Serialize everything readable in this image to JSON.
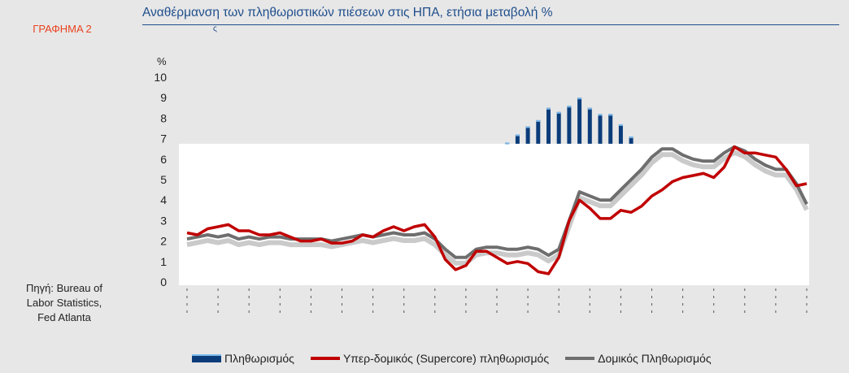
{
  "sidebar": {
    "graph_label": "ΓΡΑΦΗΜΑ 2",
    "source_lines": [
      "Πηγή: Bureau of",
      "Labor Statistics,",
      "Fed Atlanta"
    ]
  },
  "title": "Αναθέρμανση των πληθωριστικών πιέσεων στις ΗΠΑ, ετήσια μεταβολή %",
  "title_notch": "ς",
  "chart_data": {
    "type": "line",
    "title": "Αναθέρμανση των πληθωριστικών πιέσεων στις ΗΠΑ, ετήσια μεταβολή %",
    "ylabel": "%",
    "ylim": [
      0,
      10
    ],
    "y_ticks": [
      "0",
      "1",
      "2",
      "3",
      "4",
      "5",
      "6",
      "7",
      "8",
      "9",
      "10"
    ],
    "grid": false,
    "legend_position": "bottom",
    "n_points": 61,
    "series": [
      {
        "name": "Πληθωρισμός",
        "style": "bar",
        "color": "#0b3c7a",
        "x_start_index": 31,
        "values": [
          6.8,
          7.2,
          7.6,
          7.9,
          8.5,
          8.3,
          8.6,
          9.0,
          8.5,
          8.2,
          8.2,
          7.7,
          7.1
        ]
      },
      {
        "name": "Υπερ-δομικός (Supercore) πληθωρισμός",
        "style": "line",
        "color": "#c00000",
        "values": [
          2.4,
          2.3,
          2.6,
          2.7,
          2.8,
          2.5,
          2.5,
          2.3,
          2.3,
          2.4,
          2.2,
          2.0,
          2.0,
          2.1,
          1.9,
          1.9,
          2.0,
          2.3,
          2.2,
          2.5,
          2.7,
          2.5,
          2.7,
          2.8,
          2.2,
          1.1,
          0.6,
          0.8,
          1.5,
          1.5,
          1.2,
          0.9,
          1.0,
          0.9,
          0.5,
          0.4,
          1.2,
          3.0,
          4.0,
          3.6,
          3.1,
          3.1,
          3.5,
          3.4,
          3.7,
          4.2,
          4.5,
          4.9,
          5.1,
          5.2,
          5.3,
          5.1,
          5.6,
          6.6,
          6.3,
          6.3,
          6.2,
          6.1,
          5.5,
          4.7,
          4.8
        ]
      },
      {
        "name": "Δομικός Πληθωρισμός",
        "style": "line",
        "color": "#6e6e6e",
        "values": [
          2.1,
          2.2,
          2.3,
          2.2,
          2.3,
          2.1,
          2.2,
          2.1,
          2.2,
          2.2,
          2.1,
          2.1,
          2.1,
          2.1,
          2.0,
          2.1,
          2.2,
          2.3,
          2.2,
          2.3,
          2.4,
          2.3,
          2.3,
          2.4,
          2.1,
          1.6,
          1.2,
          1.2,
          1.6,
          1.7,
          1.7,
          1.6,
          1.6,
          1.7,
          1.6,
          1.3,
          1.6,
          3.0,
          4.4,
          4.2,
          4.0,
          4.0,
          4.5,
          5.0,
          5.5,
          6.1,
          6.5,
          6.5,
          6.2,
          6.0,
          5.9,
          5.9,
          6.3,
          6.6,
          6.4,
          6.0,
          5.7,
          5.5,
          5.5,
          4.8,
          3.8
        ]
      }
    ]
  },
  "legend": {
    "items": [
      {
        "label": "Πληθωρισμός",
        "color": "#0b3c7a"
      },
      {
        "label": "Υπερ-δομικός (Supercore) πληθωρισμός",
        "color": "#c00000"
      },
      {
        "label": "Δομικός Πληθωρισμός",
        "color": "#6e6e6e"
      }
    ]
  }
}
